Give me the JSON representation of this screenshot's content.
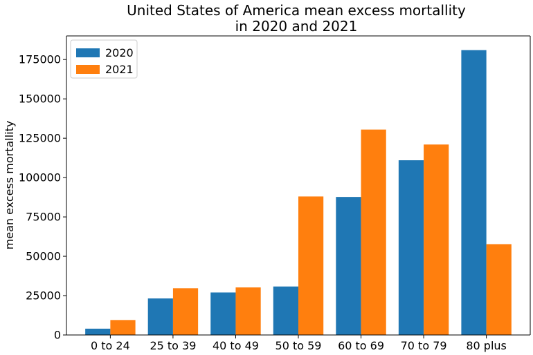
{
  "chart_data": {
    "type": "bar",
    "title_lines": [
      "United States of America mean excess mortallity",
      "in 2020 and 2021"
    ],
    "xlabel": "",
    "ylabel": "mean excess mortallity",
    "categories": [
      "0 to 24",
      "25 to 39",
      "40 to 49",
      "50 to 59",
      "60 to 69",
      "70 to 79",
      "80 plus"
    ],
    "series": [
      {
        "name": "2020",
        "color": "#1f77b4",
        "values": [
          4000,
          23200,
          27000,
          30800,
          87700,
          111000,
          181000
        ]
      },
      {
        "name": "2021",
        "color": "#ff7f0e",
        "values": [
          9500,
          29700,
          30200,
          88000,
          130500,
          121000,
          57700
        ]
      }
    ],
    "ylim": [
      0,
      190000
    ],
    "yticks": [
      0,
      25000,
      50000,
      75000,
      100000,
      125000,
      150000,
      175000
    ],
    "grid": false,
    "legend_position": "top-left"
  }
}
